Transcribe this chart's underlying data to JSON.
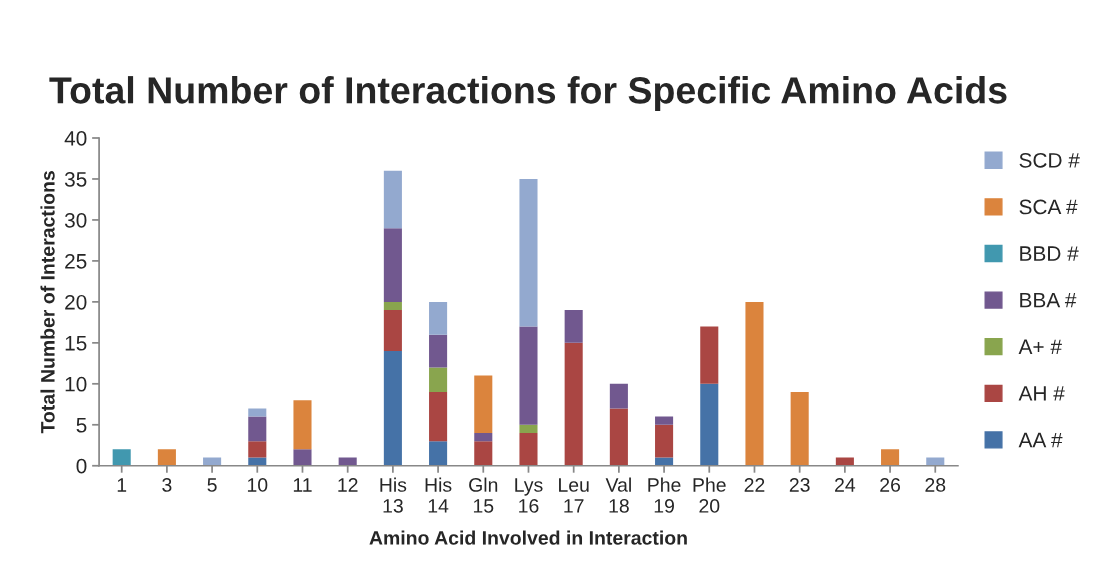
{
  "chart_data": {
    "type": "bar",
    "stacked": true,
    "title": "Total Number of Interactions for Specific Amino Acids",
    "xlabel": "Amino Acid Involved in Interaction",
    "ylabel": "Total Number of Interactions",
    "categories": [
      "1",
      "3",
      "5",
      "10",
      "11",
      "12",
      "His\n13",
      "His\n14",
      "Gln\n15",
      "Lys\n16",
      "Leu\n17",
      "Val\n18",
      "Phe\n19",
      "Phe\n20",
      "22",
      "23",
      "24",
      "26",
      "28"
    ],
    "series": [
      {
        "name": "AA #",
        "color": "#4572a7",
        "values": [
          0,
          0,
          0,
          1,
          0,
          0,
          14,
          3,
          0,
          0,
          0,
          0,
          1,
          10,
          0,
          0,
          0,
          0,
          0
        ]
      },
      {
        "name": "AH #",
        "color": "#aa4643",
        "values": [
          0,
          0,
          0,
          2,
          0,
          0,
          5,
          6,
          3,
          4,
          15,
          7,
          4,
          7,
          0,
          0,
          1,
          0,
          0
        ]
      },
      {
        "name": "A+ #",
        "color": "#89a54e",
        "values": [
          0,
          0,
          0,
          0,
          0,
          0,
          1,
          3,
          0,
          1,
          0,
          0,
          0,
          0,
          0,
          0,
          0,
          0,
          0
        ]
      },
      {
        "name": "BBA #",
        "color": "#71588f",
        "values": [
          0,
          0,
          0,
          3,
          2,
          1,
          9,
          4,
          1,
          12,
          4,
          3,
          1,
          0,
          0,
          0,
          0,
          0,
          0
        ]
      },
      {
        "name": "BBD #",
        "color": "#4198af",
        "values": [
          2,
          0,
          0,
          0,
          0,
          0,
          0,
          0,
          0,
          0,
          0,
          0,
          0,
          0,
          0,
          0,
          0,
          0,
          0
        ]
      },
      {
        "name": "SCA #",
        "color": "#db843d",
        "values": [
          0,
          2,
          0,
          0,
          6,
          0,
          0,
          0,
          7,
          0,
          0,
          0,
          0,
          0,
          20,
          9,
          0,
          2,
          0
        ]
      },
      {
        "name": "SCD #",
        "color": "#93a9cf",
        "values": [
          0,
          0,
          1,
          1,
          0,
          0,
          7,
          4,
          0,
          18,
          0,
          0,
          0,
          0,
          0,
          0,
          0,
          0,
          1
        ]
      }
    ],
    "ylim": [
      0,
      40
    ],
    "yticks": [
      0,
      5,
      10,
      15,
      20,
      25,
      30,
      35,
      40
    ],
    "grid": false,
    "legend": "right"
  }
}
